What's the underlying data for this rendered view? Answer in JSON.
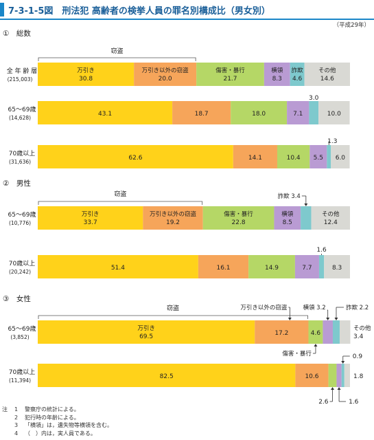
{
  "figure": {
    "title": "7-3-1-5図　刑法犯 高齢者の検挙人員の罪名別構成比（男女別）",
    "era_note": "（平成29年）"
  },
  "colors": {
    "万引き": "#ffd21a",
    "万引き以外の窃盗": "#f6a55a",
    "傷害・暴行": "#b5d766",
    "横領": "#b99bd3",
    "詐欺": "#7ec9cd",
    "その他": "#d9d9d4"
  },
  "chart_data": [
    {
      "type": "bar",
      "orientation": "horizontal-stacked-100",
      "panel_label": "①　総数",
      "categories": [
        "万引き",
        "万引き以外の窃盗",
        "傷害・暴行",
        "横領",
        "詐欺",
        "その他"
      ],
      "group_label": "窃盗",
      "rows": [
        {
          "label": "全 年 齢 層",
          "sub": "(215,003)",
          "values": [
            30.8,
            20.0,
            21.7,
            8.3,
            4.6,
            14.6
          ],
          "value_labels": [
            "30.8",
            "20.0",
            "21.7",
            "8.3",
            "4.6",
            "14.6"
          ]
        },
        {
          "label": "65～69歳",
          "sub": "(14,628)",
          "values": [
            43.1,
            18.7,
            18.0,
            7.1,
            3.0,
            10.0
          ],
          "value_labels": [
            "43.1",
            "18.7",
            "18.0",
            "7.1",
            "3.0",
            "10.0"
          ]
        },
        {
          "label": "70歳以上",
          "sub": "(31,636)",
          "values": [
            62.6,
            14.1,
            10.4,
            5.5,
            1.3,
            6.0
          ],
          "value_labels": [
            "62.6",
            "14.1",
            "10.4",
            "5.5",
            "1.3",
            "6.0"
          ]
        }
      ]
    },
    {
      "type": "bar",
      "orientation": "horizontal-stacked-100",
      "panel_label": "②　男性",
      "categories": [
        "万引き",
        "万引き以外の窃盗",
        "傷害・暴行",
        "横領",
        "詐欺",
        "その他"
      ],
      "group_label": "窃盗",
      "callout": "詐欺 3.4",
      "rows": [
        {
          "label": "65～69歳",
          "sub": "(10,776)",
          "values": [
            33.7,
            19.2,
            22.8,
            8.5,
            3.4,
            12.4
          ],
          "value_labels": [
            "33.7",
            "19.2",
            "22.8",
            "8.5",
            "",
            "12.4"
          ]
        },
        {
          "label": "70歳以上",
          "sub": "(20,242)",
          "values": [
            51.4,
            16.1,
            14.9,
            7.7,
            1.6,
            8.3
          ],
          "value_labels": [
            "51.4",
            "16.1",
            "14.9",
            "7.7",
            "1.6",
            "8.3"
          ]
        }
      ]
    },
    {
      "type": "bar",
      "orientation": "horizontal-stacked-100",
      "panel_label": "③　女性",
      "categories": [
        "万引き",
        "万引き以外の窃盗",
        "傷害・暴行",
        "横領",
        "詐欺",
        "その他"
      ],
      "group_label": "窃盗",
      "callouts": [
        "万引き以外の窃盗",
        "横領 3.2",
        "詐欺 2.2",
        "傷害・暴行"
      ],
      "rows": [
        {
          "label": "65～69歳",
          "sub": "(3,852)",
          "values": [
            69.5,
            17.2,
            4.6,
            3.2,
            2.2,
            3.4
          ],
          "value_labels": [
            "69.5",
            "17.2",
            "4.6",
            "",
            "",
            "3.4"
          ]
        },
        {
          "label": "70歳以上",
          "sub": "(11,394)",
          "values": [
            82.5,
            10.6,
            2.6,
            1.6,
            0.9,
            1.8
          ],
          "value_labels": [
            "82.5",
            "10.6",
            "2.6",
            "1.6",
            "0.9",
            "1.8"
          ]
        }
      ]
    }
  ],
  "notes": {
    "label": "注",
    "items": [
      {
        "num": "1",
        "text": "警察庁の統計による。"
      },
      {
        "num": "2",
        "text": "犯行時の年齢による。"
      },
      {
        "num": "3",
        "text": "「横領」は，遺失物等横領を含む。"
      },
      {
        "num": "4",
        "text": "（　）内は，実人員である。"
      }
    ]
  }
}
